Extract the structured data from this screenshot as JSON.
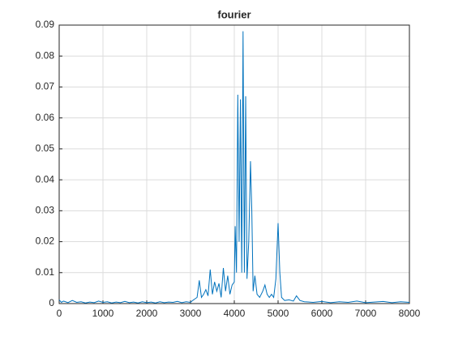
{
  "chart_data": {
    "type": "line",
    "title": "fourier",
    "color": "#0072bd",
    "grid": true,
    "xlim": [
      0,
      8000
    ],
    "xticks": [
      0,
      1000,
      2000,
      3000,
      4000,
      5000,
      6000,
      7000,
      8000
    ],
    "ylim": [
      0,
      0.09
    ],
    "yticks": [
      0,
      0.01,
      0.02,
      0.03,
      0.04,
      0.05,
      0.06,
      0.07,
      0.08,
      0.09
    ],
    "x": [
      0,
      50,
      100,
      200,
      300,
      400,
      500,
      600,
      700,
      800,
      900,
      1000,
      1100,
      1200,
      1300,
      1400,
      1500,
      1600,
      1700,
      1800,
      1900,
      2000,
      2100,
      2200,
      2300,
      2400,
      2500,
      2600,
      2700,
      2800,
      2900,
      3000,
      3050,
      3100,
      3150,
      3200,
      3250,
      3300,
      3350,
      3400,
      3450,
      3500,
      3550,
      3600,
      3650,
      3700,
      3750,
      3800,
      3850,
      3900,
      3950,
      4000,
      4020,
      4050,
      4080,
      4110,
      4140,
      4170,
      4200,
      4230,
      4260,
      4290,
      4330,
      4370,
      4400,
      4430,
      4470,
      4520,
      4580,
      4650,
      4700,
      4750,
      4800,
      4850,
      4900,
      4950,
      5000,
      5040,
      5080,
      5150,
      5250,
      5350,
      5420,
      5500,
      5600,
      5800,
      6000,
      6200,
      6400,
      6600,
      6800,
      7000,
      7200,
      7400,
      7600,
      7800,
      8000
    ],
    "values": [
      0.0012,
      0.0004,
      0.0008,
      0.0003,
      0.001,
      0.0004,
      0.0006,
      0.0002,
      0.0005,
      0.0003,
      0.0008,
      0.0004,
      0.0006,
      0.0002,
      0.0005,
      0.0003,
      0.0007,
      0.0003,
      0.0005,
      0.0002,
      0.0006,
      0.0003,
      0.0005,
      0.0002,
      0.0006,
      0.0003,
      0.0005,
      0.0004,
      0.0007,
      0.0003,
      0.0006,
      0.0004,
      0.001,
      0.0015,
      0.002,
      0.0075,
      0.002,
      0.003,
      0.0045,
      0.0025,
      0.011,
      0.003,
      0.007,
      0.004,
      0.0065,
      0.002,
      0.0115,
      0.004,
      0.009,
      0.003,
      0.006,
      0.007,
      0.025,
      0.01,
      0.0675,
      0.02,
      0.066,
      0.01,
      0.088,
      0.01,
      0.067,
      0.008,
      0.02,
      0.046,
      0.03,
      0.004,
      0.009,
      0.003,
      0.002,
      0.004,
      0.006,
      0.003,
      0.002,
      0.003,
      0.002,
      0.008,
      0.026,
      0.01,
      0.002,
      0.001,
      0.0012,
      0.0008,
      0.0025,
      0.001,
      0.0006,
      0.0004,
      0.0007,
      0.0003,
      0.0006,
      0.0004,
      0.0008,
      0.0003,
      0.0005,
      0.0007,
      0.0003,
      0.0006,
      0.0004
    ]
  }
}
